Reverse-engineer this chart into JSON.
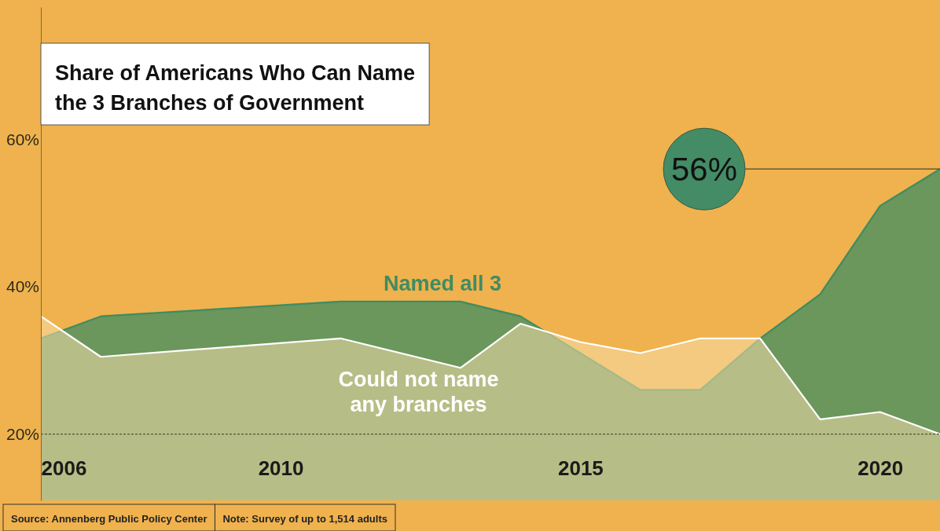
{
  "chart_data": {
    "type": "area",
    "title": "Share of Americans Who Can Name the 3 Branches of Government",
    "xlim": [
      2006,
      2021
    ],
    "xticks": [
      2006,
      2010,
      2015,
      2020
    ],
    "ylim": [
      11,
      78
    ],
    "yticks": [
      {
        "value": 20,
        "label": "20%"
      },
      {
        "value": 40,
        "label": "40%"
      },
      {
        "value": 60,
        "label": "60%"
      }
    ],
    "series": [
      {
        "name": "Named all 3",
        "color": "#3f8c62",
        "x": [
          2006,
          2007,
          2011,
          2013,
          2014,
          2016,
          2017,
          2018,
          2019,
          2020,
          2021
        ],
        "values": [
          33,
          36,
          38,
          38,
          36,
          26,
          26,
          33,
          39,
          51,
          56
        ]
      },
      {
        "name": "Could not name any branches",
        "color": "#ffffff",
        "x": [
          2006,
          2007,
          2011,
          2013,
          2014,
          2015,
          2016,
          2017,
          2018,
          2019,
          2020,
          2021
        ],
        "values": [
          36,
          30.5,
          33,
          29,
          35,
          32.5,
          31,
          33,
          33,
          22,
          23,
          20
        ]
      }
    ],
    "ref_lines": [
      {
        "axis": "y",
        "value": 20,
        "color": "#4a5a3a",
        "line_style": "dashed"
      }
    ],
    "annotations": [
      {
        "text": "56%",
        "x": 2021,
        "y": 56
      },
      "Source: Annenberg Public Policy Center",
      "Note: Survey of up to 1,514 adults"
    ]
  }
}
